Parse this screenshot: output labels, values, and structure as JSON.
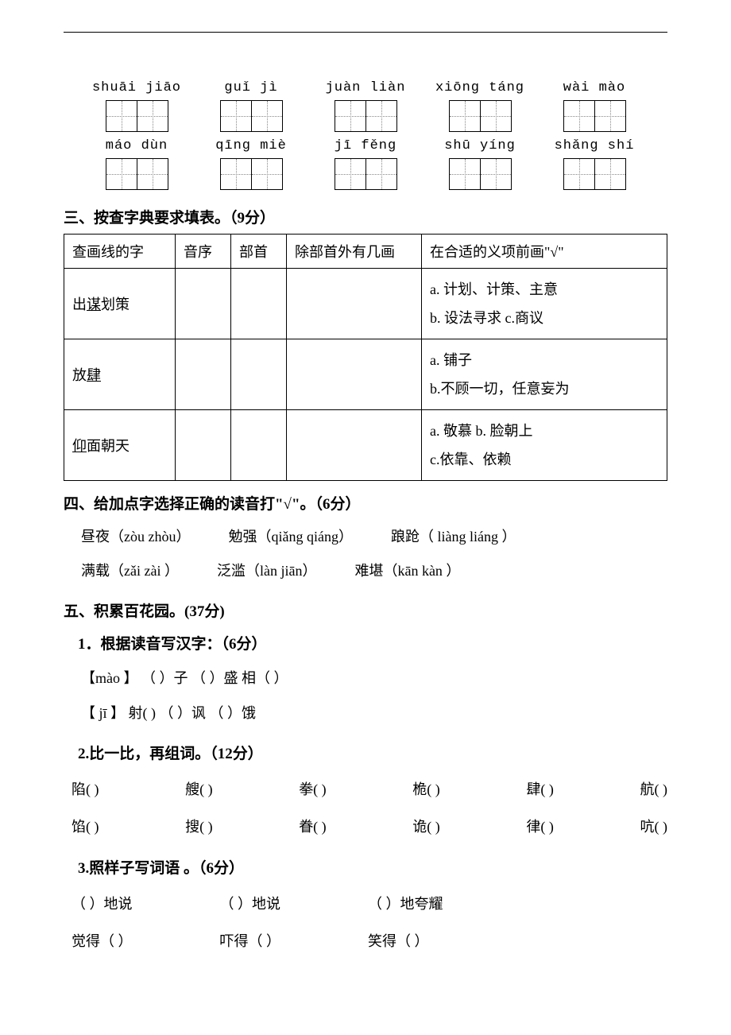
{
  "page": {
    "background": "#ffffff",
    "text_color": "#000000",
    "font_family": "SimSun",
    "base_fontsize": 18
  },
  "pinyin_rows": [
    [
      {
        "pinyin": "shuāi jiāo",
        "boxes": 2
      },
      {
        "pinyin": "guǐ jì",
        "boxes": 2
      },
      {
        "pinyin": "juàn liàn",
        "boxes": 2
      },
      {
        "pinyin": "xiōng táng",
        "boxes": 2
      },
      {
        "pinyin": "wài mào",
        "boxes": 2
      }
    ],
    [
      {
        "pinyin": "máo dùn",
        "boxes": 2
      },
      {
        "pinyin": "qīng miè",
        "boxes": 2
      },
      {
        "pinyin": "jī fěng",
        "boxes": 2
      },
      {
        "pinyin": "shū yíng",
        "boxes": 2
      },
      {
        "pinyin": "shǎng shí",
        "boxes": 2
      }
    ]
  ],
  "section3": {
    "title": "三、按查字典要求填表。（9分）",
    "headers": [
      "查画线的字",
      "音序",
      "部首",
      "除部首外有几画",
      "在合适的义项前画\"√\""
    ],
    "col_widths": [
      "140px",
      "70px",
      "70px",
      "170px",
      "auto"
    ],
    "rows": [
      {
        "word_pre": "出",
        "word_ul": "谋",
        "word_post": "划策",
        "choices": "a. 计划、计策、主意\n b. 设法寻求  c.商议"
      },
      {
        "word_pre": "放",
        "word_ul": "肆",
        "word_post": "",
        "choices": "a. 铺子\nb.不顾一切，任意妄为"
      },
      {
        "word_pre": "",
        "word_ul": "仰",
        "word_post": "面朝天",
        "choices": "a. 敬慕  b. 脸朝上\nc.依靠、依赖"
      }
    ]
  },
  "section4": {
    "title": "四、给加点字选择正确的读音打\"√\"。（6分）",
    "lines": [
      [
        "昼夜（zòu zhòu）",
        "勉强（qiǎng  qiáng）",
        "踉跄（ liàng  liáng ）"
      ],
      [
        "满载（zǎi zài ）",
        "泛滥（làn  jiān）",
        "难堪（kān   kàn  ）"
      ]
    ]
  },
  "section5": {
    "title": "五、积累百花园。(37分)",
    "q1": {
      "title": "1．根据读音写汉字：（6分）",
      "lines": [
        "【mào 】 （  ）子     （ ）盛     相（   ）",
        "【 jī 】  射(  )    （ ）讽   （ ）饿"
      ]
    },
    "q2": {
      "title": "2.比一比，再组词。（12分）",
      "rows": [
        [
          "陷(     )",
          "艘(     )",
          "拳(     )",
          "桅(     )",
          "肆(     )",
          "航(     )"
        ],
        [
          "馅(     )",
          "搜(     )",
          "眷(     )",
          "诡(     )",
          "律(     )",
          "吭(     )"
        ]
      ]
    },
    "q3": {
      "title": "3.照样子写词语 。（6分）",
      "rows": [
        [
          "（     ）地说",
          "（     ）地说",
          "（     ）地夸耀"
        ],
        [
          "觉得（     ）",
          "吓得（     ）",
          "笑得（     ）"
        ]
      ]
    }
  }
}
